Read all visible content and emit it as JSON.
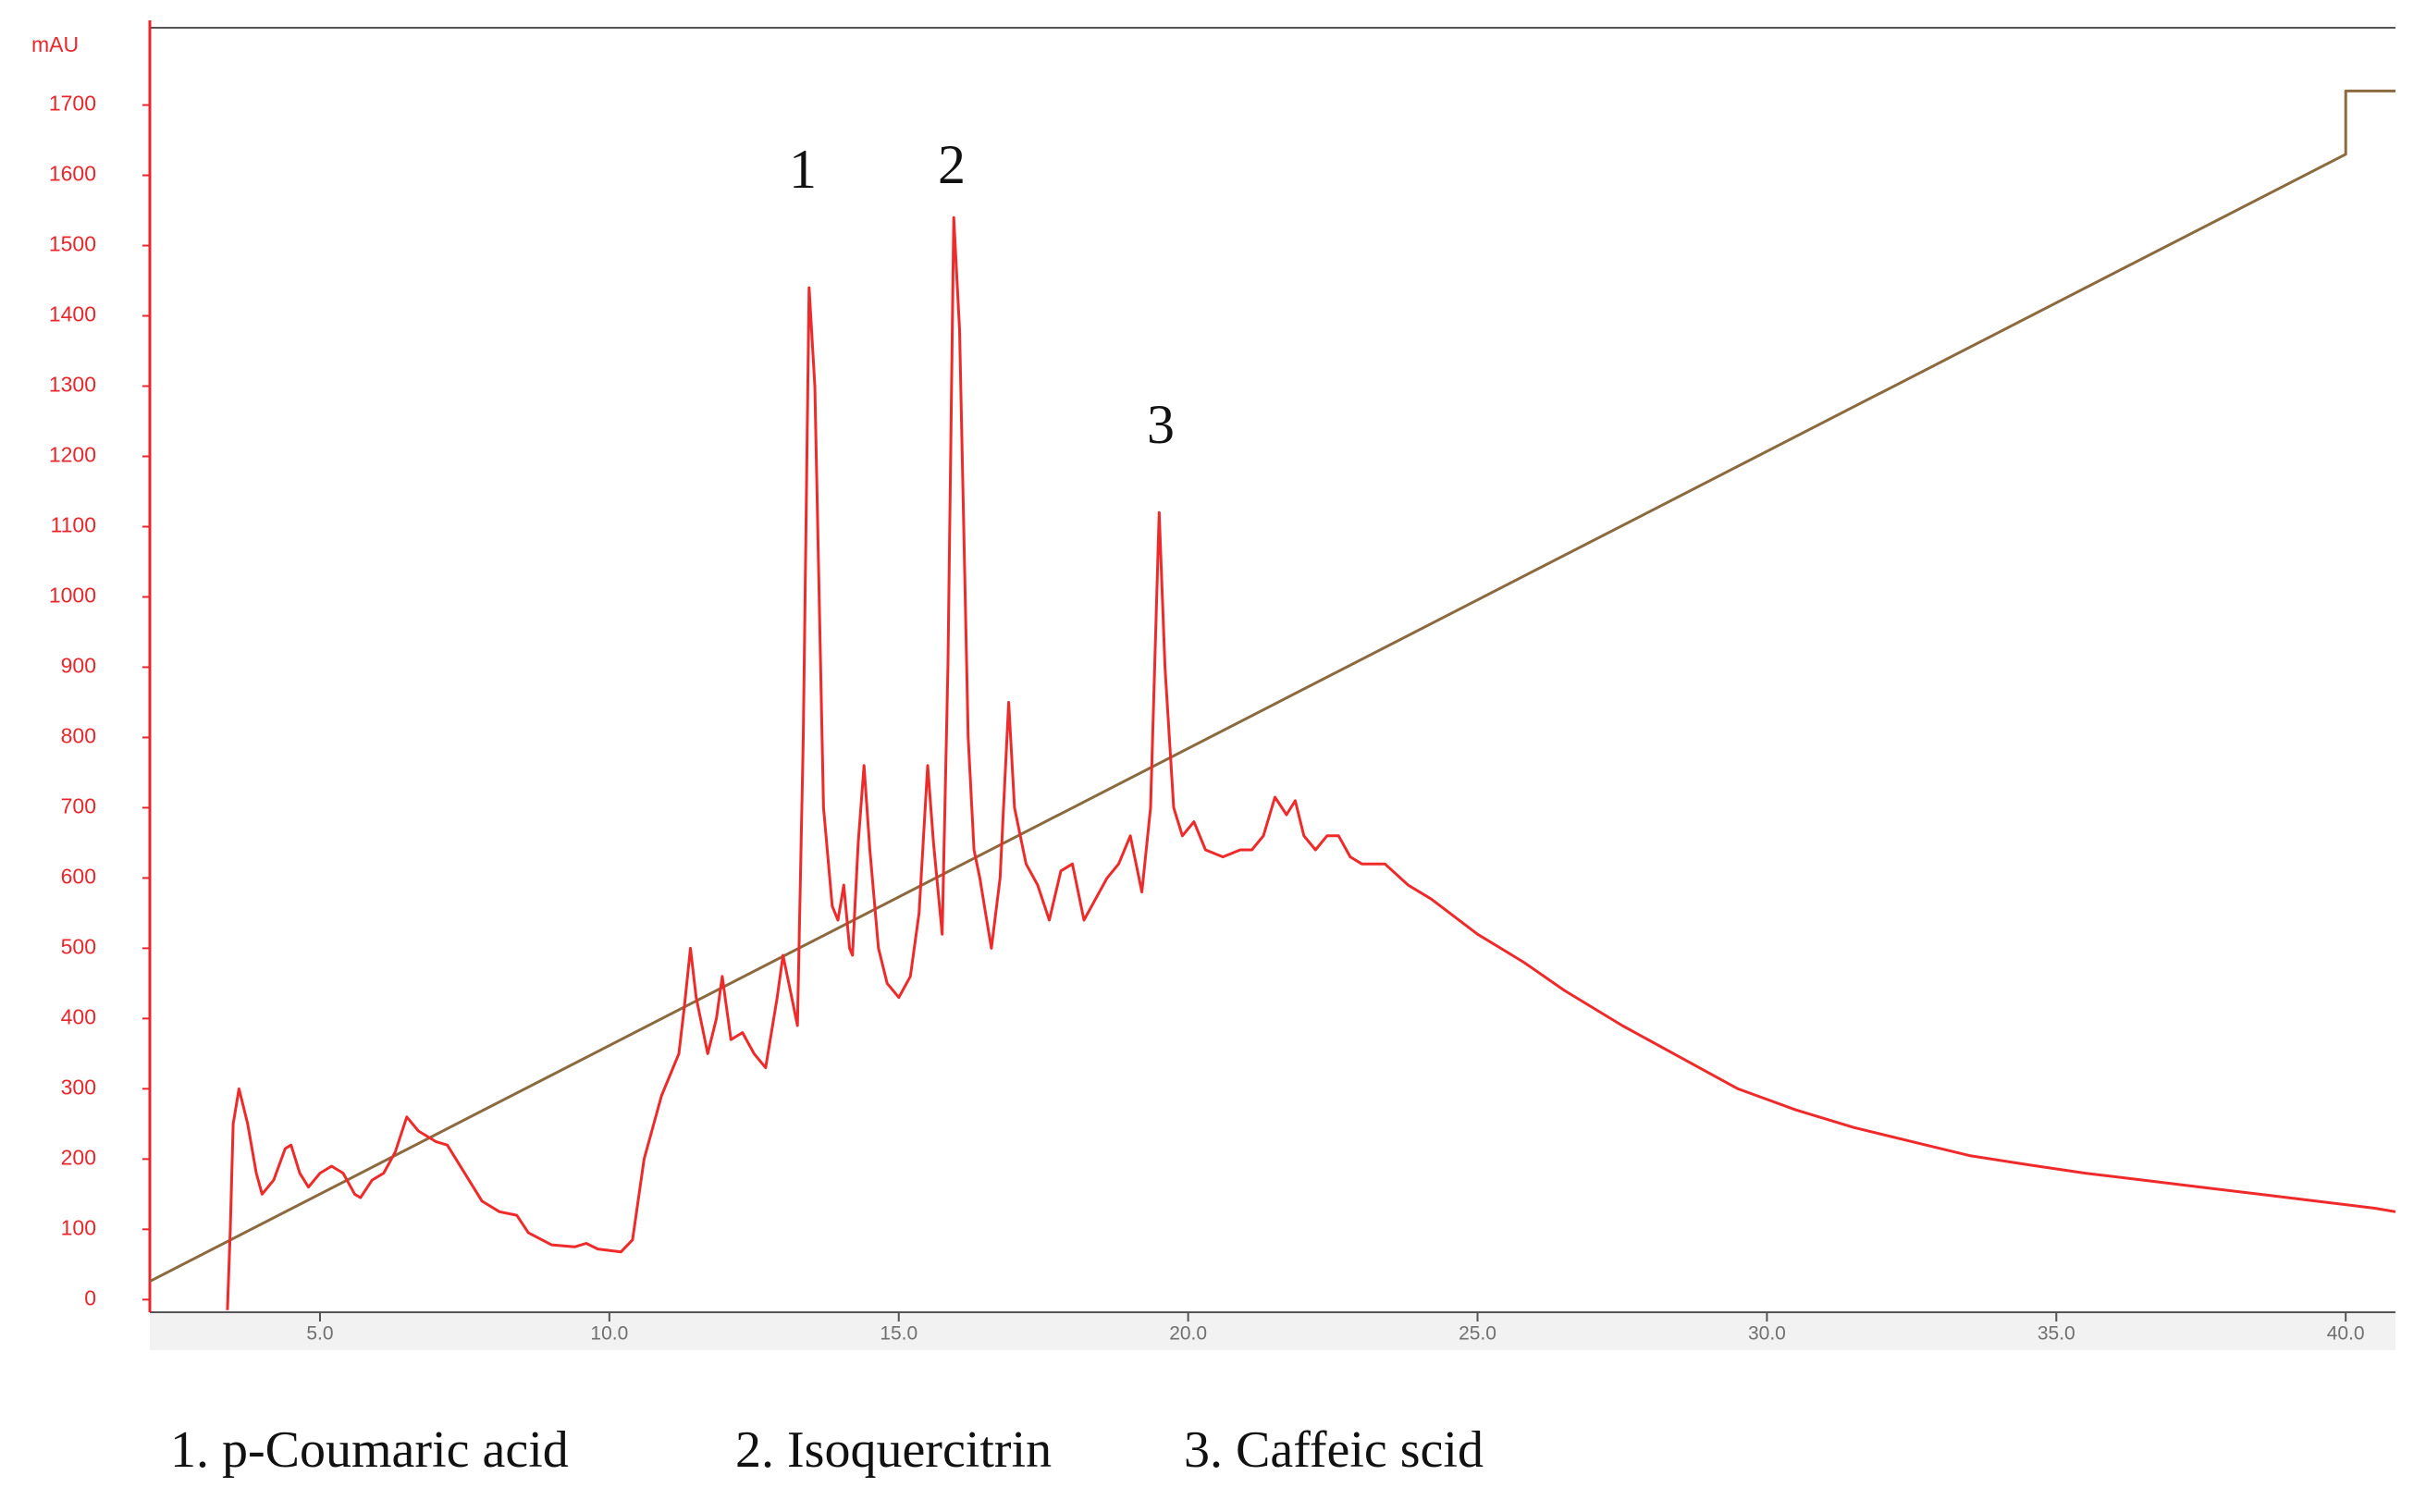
{
  "chart_data": {
    "type": "line",
    "y_label": "mAU",
    "xlim": [
      2.06,
      40.86
    ],
    "ylim": [
      -18,
      1810
    ],
    "xticks": [
      {
        "value": 5,
        "label": "5.0"
      },
      {
        "value": 10,
        "label": "10.0"
      },
      {
        "value": 15,
        "label": "15.0"
      },
      {
        "value": 20,
        "label": "20.0"
      },
      {
        "value": 25,
        "label": "25.0"
      },
      {
        "value": 30,
        "label": "30.0"
      },
      {
        "value": 35,
        "label": "35.0"
      },
      {
        "value": 40,
        "label": "40.0"
      }
    ],
    "yticks": [
      0,
      100,
      200,
      300,
      400,
      500,
      600,
      700,
      800,
      900,
      1000,
      1100,
      1200,
      1300,
      1400,
      1500,
      1600,
      1700
    ],
    "axis_color": "#e8262b",
    "annotations": [
      "1",
      "2",
      "3"
    ],
    "captions": [
      "1. p-Coumaric acid",
      "2. Isoquercitrin",
      "3. Caffeic scid"
    ],
    "series": [
      {
        "color": "#ee2a2a",
        "x": [
          3.4,
          3.45,
          3.5,
          3.6,
          3.75,
          3.9,
          4.0,
          4.2,
          4.4,
          4.5,
          4.65,
          4.8,
          5.0,
          5.2,
          5.4,
          5.6,
          5.7,
          5.9,
          6.1,
          6.3,
          6.5,
          6.7,
          7.0,
          7.2,
          7.5,
          7.8,
          8.1,
          8.4,
          8.6,
          9.0,
          9.4,
          9.6,
          9.8,
          10.2,
          10.4,
          10.6,
          10.9,
          11.2,
          11.3,
          11.4,
          11.5,
          11.7,
          11.85,
          11.95,
          12.1,
          12.3,
          12.5,
          12.7,
          12.9,
          13.0,
          13.15,
          13.25,
          13.35,
          13.45,
          13.55,
          13.7,
          13.85,
          13.95,
          14.05,
          14.15,
          14.2,
          14.3,
          14.4,
          14.5,
          14.65,
          14.8,
          15.0,
          15.2,
          15.35,
          15.5,
          15.6,
          15.75,
          15.85,
          15.95,
          16.05,
          16.2,
          16.3,
          16.4,
          16.5,
          16.6,
          16.75,
          16.9,
          17.0,
          17.2,
          17.4,
          17.6,
          17.8,
          18.0,
          18.2,
          18.4,
          18.6,
          18.8,
          19.0,
          19.2,
          19.35,
          19.5,
          19.6,
          19.75,
          19.9,
          20.1,
          20.3,
          20.6,
          20.9,
          21.1,
          21.3,
          21.5,
          21.7,
          21.85,
          22.0,
          22.2,
          22.4,
          22.6,
          22.8,
          23.0,
          23.4,
          23.8,
          24.2,
          24.6,
          25.0,
          25.4,
          25.8,
          26.5,
          27.5,
          28.5,
          29.5,
          30.5,
          31.5,
          32.5,
          33.5,
          34.5,
          35.5,
          36.5,
          37.5,
          38.5,
          39.5,
          40.5,
          40.86
        ],
        "values": [
          -15,
          100,
          250,
          300,
          250,
          180,
          150,
          170,
          215,
          220,
          180,
          160,
          180,
          190,
          180,
          150,
          145,
          170,
          180,
          210,
          260,
          240,
          225,
          220,
          180,
          140,
          125,
          120,
          95,
          78,
          75,
          80,
          72,
          68,
          85,
          200,
          290,
          350,
          420,
          500,
          430,
          350,
          400,
          460,
          370,
          380,
          350,
          330,
          430,
          490,
          430,
          390,
          800,
          1440,
          1300,
          700,
          560,
          540,
          590,
          500,
          490,
          650,
          760,
          640,
          500,
          450,
          430,
          460,
          550,
          760,
          650,
          520,
          900,
          1540,
          1380,
          800,
          640,
          600,
          550,
          500,
          600,
          850,
          700,
          620,
          590,
          540,
          610,
          620,
          540,
          570,
          600,
          620,
          660,
          580,
          700,
          1120,
          900,
          700,
          660,
          680,
          640,
          630,
          640,
          640,
          660,
          715,
          690,
          710,
          660,
          640,
          660,
          660,
          630,
          620,
          620,
          590,
          570,
          545,
          520,
          500,
          480,
          440,
          390,
          345,
          300,
          270,
          245,
          225,
          205,
          192,
          180,
          170,
          160,
          150,
          140,
          130,
          125
        ]
      },
      {
        "color": "#8c6a3f",
        "x": [
          2.06,
          40.0,
          40.0,
          40.86
        ],
        "values": [
          26,
          1630,
          1720,
          1720
        ]
      }
    ]
  }
}
